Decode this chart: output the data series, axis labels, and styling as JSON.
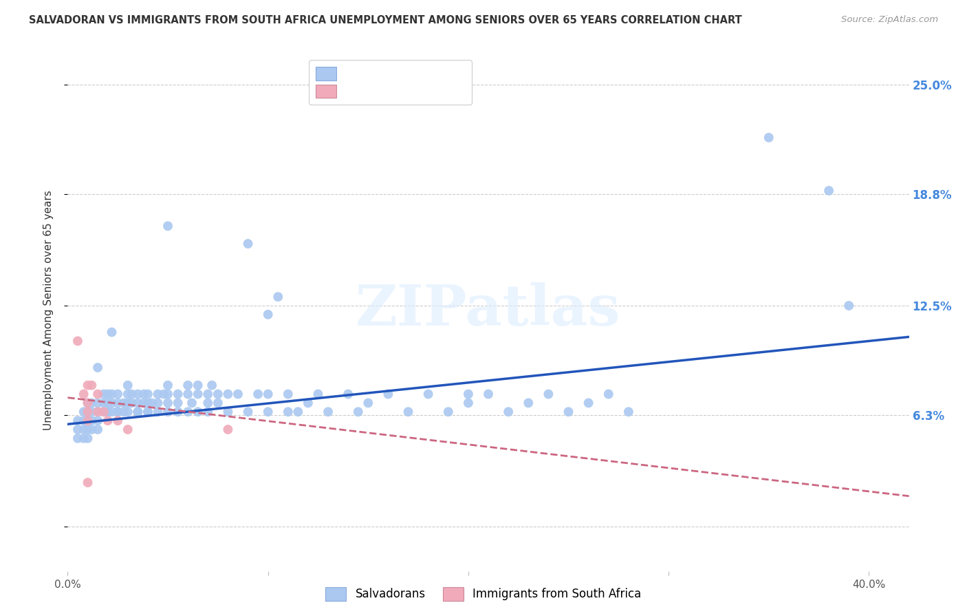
{
  "title": "SALVADORAN VS IMMIGRANTS FROM SOUTH AFRICA UNEMPLOYMENT AMONG SENIORS OVER 65 YEARS CORRELATION CHART",
  "source": "Source: ZipAtlas.com",
  "ylabel": "Unemployment Among Seniors over 65 years",
  "xlim": [
    0.0,
    0.42
  ],
  "ylim": [
    -0.025,
    0.27
  ],
  "ytick_vals": [
    0.0,
    0.063,
    0.125,
    0.188,
    0.25
  ],
  "ytick_labels": [
    "",
    "6.3%",
    "12.5%",
    "18.8%",
    "25.0%"
  ],
  "xtick_vals": [
    0.0,
    0.1,
    0.2,
    0.3,
    0.4
  ],
  "xtick_labels": [
    "0.0%",
    "",
    "",
    "",
    "40.0%"
  ],
  "background_color": "#ffffff",
  "watermark_text": "ZIPatlas",
  "blue_scatter_color": "#aac8f0",
  "pink_scatter_color": "#f0aaba",
  "blue_line_color": "#2255bb",
  "pink_line_color": "#cc6680",
  "blue_trend_x0": 0.0,
  "blue_trend_y0": 0.058,
  "blue_trend_x1": 0.4,
  "blue_trend_y1": 0.105,
  "pink_trend_x0": 0.0,
  "pink_trend_y0": 0.073,
  "pink_trend_x1": 0.4,
  "pink_trend_y1": 0.02,
  "blue_scatter": [
    [
      0.005,
      0.055
    ],
    [
      0.005,
      0.05
    ],
    [
      0.005,
      0.06
    ],
    [
      0.008,
      0.055
    ],
    [
      0.008,
      0.06
    ],
    [
      0.008,
      0.065
    ],
    [
      0.008,
      0.05
    ],
    [
      0.01,
      0.06
    ],
    [
      0.01,
      0.055
    ],
    [
      0.01,
      0.065
    ],
    [
      0.01,
      0.07
    ],
    [
      0.01,
      0.05
    ],
    [
      0.012,
      0.065
    ],
    [
      0.012,
      0.06
    ],
    [
      0.012,
      0.055
    ],
    [
      0.012,
      0.07
    ],
    [
      0.015,
      0.065
    ],
    [
      0.015,
      0.07
    ],
    [
      0.015,
      0.06
    ],
    [
      0.015,
      0.09
    ],
    [
      0.015,
      0.055
    ],
    [
      0.018,
      0.065
    ],
    [
      0.018,
      0.07
    ],
    [
      0.018,
      0.075
    ],
    [
      0.02,
      0.065
    ],
    [
      0.02,
      0.07
    ],
    [
      0.02,
      0.075
    ],
    [
      0.02,
      0.065
    ],
    [
      0.022,
      0.07
    ],
    [
      0.022,
      0.065
    ],
    [
      0.022,
      0.075
    ],
    [
      0.022,
      0.11
    ],
    [
      0.025,
      0.065
    ],
    [
      0.025,
      0.07
    ],
    [
      0.025,
      0.075
    ],
    [
      0.025,
      0.065
    ],
    [
      0.028,
      0.07
    ],
    [
      0.028,
      0.065
    ],
    [
      0.03,
      0.07
    ],
    [
      0.03,
      0.075
    ],
    [
      0.03,
      0.065
    ],
    [
      0.03,
      0.08
    ],
    [
      0.032,
      0.07
    ],
    [
      0.032,
      0.075
    ],
    [
      0.035,
      0.065
    ],
    [
      0.035,
      0.07
    ],
    [
      0.035,
      0.075
    ],
    [
      0.035,
      0.065
    ],
    [
      0.038,
      0.07
    ],
    [
      0.038,
      0.075
    ],
    [
      0.04,
      0.065
    ],
    [
      0.04,
      0.07
    ],
    [
      0.04,
      0.075
    ],
    [
      0.04,
      0.065
    ],
    [
      0.042,
      0.07
    ],
    [
      0.045,
      0.07
    ],
    [
      0.045,
      0.075
    ],
    [
      0.045,
      0.065
    ],
    [
      0.048,
      0.075
    ],
    [
      0.05,
      0.07
    ],
    [
      0.05,
      0.075
    ],
    [
      0.05,
      0.065
    ],
    [
      0.05,
      0.08
    ],
    [
      0.05,
      0.17
    ],
    [
      0.055,
      0.07
    ],
    [
      0.055,
      0.075
    ],
    [
      0.055,
      0.065
    ],
    [
      0.06,
      0.075
    ],
    [
      0.06,
      0.08
    ],
    [
      0.06,
      0.065
    ],
    [
      0.062,
      0.07
    ],
    [
      0.065,
      0.075
    ],
    [
      0.065,
      0.065
    ],
    [
      0.065,
      0.08
    ],
    [
      0.07,
      0.07
    ],
    [
      0.07,
      0.075
    ],
    [
      0.07,
      0.065
    ],
    [
      0.072,
      0.08
    ],
    [
      0.075,
      0.075
    ],
    [
      0.075,
      0.07
    ],
    [
      0.08,
      0.075
    ],
    [
      0.08,
      0.065
    ],
    [
      0.085,
      0.075
    ],
    [
      0.09,
      0.065
    ],
    [
      0.09,
      0.16
    ],
    [
      0.095,
      0.075
    ],
    [
      0.1,
      0.065
    ],
    [
      0.1,
      0.075
    ],
    [
      0.1,
      0.12
    ],
    [
      0.105,
      0.13
    ],
    [
      0.11,
      0.065
    ],
    [
      0.11,
      0.075
    ],
    [
      0.115,
      0.065
    ],
    [
      0.12,
      0.07
    ],
    [
      0.125,
      0.075
    ],
    [
      0.13,
      0.065
    ],
    [
      0.14,
      0.075
    ],
    [
      0.145,
      0.065
    ],
    [
      0.15,
      0.07
    ],
    [
      0.16,
      0.075
    ],
    [
      0.17,
      0.065
    ],
    [
      0.18,
      0.075
    ],
    [
      0.19,
      0.065
    ],
    [
      0.2,
      0.075
    ],
    [
      0.2,
      0.07
    ],
    [
      0.21,
      0.075
    ],
    [
      0.22,
      0.065
    ],
    [
      0.23,
      0.07
    ],
    [
      0.24,
      0.075
    ],
    [
      0.25,
      0.065
    ],
    [
      0.26,
      0.07
    ],
    [
      0.27,
      0.075
    ],
    [
      0.28,
      0.065
    ],
    [
      0.35,
      0.22
    ],
    [
      0.38,
      0.19
    ],
    [
      0.39,
      0.125
    ]
  ],
  "pink_scatter": [
    [
      0.005,
      0.105
    ],
    [
      0.008,
      0.075
    ],
    [
      0.01,
      0.08
    ],
    [
      0.01,
      0.07
    ],
    [
      0.01,
      0.065
    ],
    [
      0.01,
      0.06
    ],
    [
      0.012,
      0.08
    ],
    [
      0.015,
      0.075
    ],
    [
      0.015,
      0.065
    ],
    [
      0.018,
      0.065
    ],
    [
      0.02,
      0.06
    ],
    [
      0.025,
      0.06
    ],
    [
      0.03,
      0.055
    ],
    [
      0.01,
      0.025
    ],
    [
      0.08,
      0.055
    ]
  ]
}
